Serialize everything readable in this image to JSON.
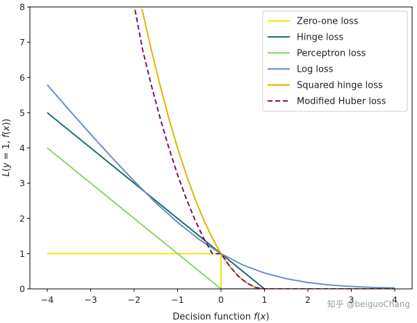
{
  "chart_data": {
    "type": "line",
    "title": "",
    "xlabel": "Decision function $f(x)$",
    "xlabel_parts": [
      "Decision function ",
      "f",
      "(",
      "x",
      ")"
    ],
    "ylabel_parts": [
      "L",
      "(",
      "y",
      " = 1, ",
      "f",
      "(",
      "x",
      "))"
    ],
    "xlim": [
      -4.4,
      4.4
    ],
    "ylim": [
      0,
      8
    ],
    "xticks": [
      -4,
      -3,
      -2,
      -1,
      0,
      1,
      2,
      3,
      4
    ],
    "xtick_labels": [
      "−4",
      "−3",
      "−2",
      "−1",
      "0",
      "1",
      "2",
      "3",
      "4"
    ],
    "yticks": [
      0,
      1,
      2,
      3,
      4,
      5,
      6,
      7,
      8
    ],
    "ytick_labels": [
      "0",
      "1",
      "2",
      "3",
      "4",
      "5",
      "6",
      "7",
      "8"
    ],
    "legend_position": "top-right",
    "grid": false,
    "series": [
      {
        "name": "Zero-one loss",
        "color": "#f2e500",
        "dash": "solid",
        "x": [
          -4,
          0,
          0,
          0,
          4
        ],
        "y": [
          1,
          1,
          1,
          0,
          0
        ]
      },
      {
        "name": "Hinge loss",
        "color": "#1b6b6e",
        "dash": "solid",
        "x": [
          -4,
          -3,
          -2,
          -1,
          0,
          1,
          2,
          3,
          4
        ],
        "y": [
          5,
          4,
          3,
          2,
          1,
          0,
          0,
          0,
          0
        ]
      },
      {
        "name": "Perceptron loss",
        "color": "#8bd26a",
        "dash": "solid",
        "x": [
          -4,
          -3,
          -2,
          -1,
          0,
          1,
          2,
          3,
          4
        ],
        "y": [
          4,
          3,
          2,
          1,
          0,
          0,
          0,
          0,
          0
        ]
      },
      {
        "name": "Log loss",
        "color": "#6a8fc2",
        "dash": "solid",
        "x": [
          -4,
          -3.5,
          -3,
          -2.5,
          -2,
          -1.5,
          -1,
          -0.5,
          0,
          0.5,
          1,
          1.5,
          2,
          2.5,
          3,
          3.5,
          4
        ],
        "y": [
          5.79,
          5.08,
          4.39,
          3.71,
          3.06,
          2.44,
          1.89,
          1.4,
          1.0,
          0.68,
          0.45,
          0.29,
          0.18,
          0.11,
          0.07,
          0.04,
          0.03
        ]
      },
      {
        "name": "Squared hinge loss",
        "color": "#e0b400",
        "dash": "solid",
        "x": [
          -1.82,
          -1.6,
          -1.4,
          -1.2,
          -1.0,
          -0.8,
          -0.6,
          -0.4,
          -0.2,
          0,
          0.2,
          0.4,
          0.6,
          0.8,
          1,
          2,
          3,
          4
        ],
        "y": [
          7.95,
          6.76,
          5.76,
          4.84,
          4.0,
          3.24,
          2.56,
          1.96,
          1.44,
          1.0,
          0.64,
          0.36,
          0.16,
          0.04,
          0,
          0,
          0,
          0
        ]
      },
      {
        "name": "Modified Huber loss",
        "color": "#7a0f6e",
        "dash": "dashed",
        "x": [
          -1.98,
          -1.8,
          -1.6,
          -1.4,
          -1.2,
          -1.0,
          -0.8,
          -0.6,
          -0.4,
          -0.2,
          0,
          0.2,
          0.4,
          0.6,
          0.8,
          1,
          2,
          3,
          4
        ],
        "y": [
          7.92,
          6.76,
          5.76,
          4.84,
          4.0,
          3.24,
          2.56,
          1.96,
          1.44,
          1.0,
          1.0,
          0.64,
          0.36,
          0.16,
          0.04,
          0,
          0,
          0,
          0
        ]
      }
    ]
  },
  "watermark": "知乎 @beiguoChang"
}
